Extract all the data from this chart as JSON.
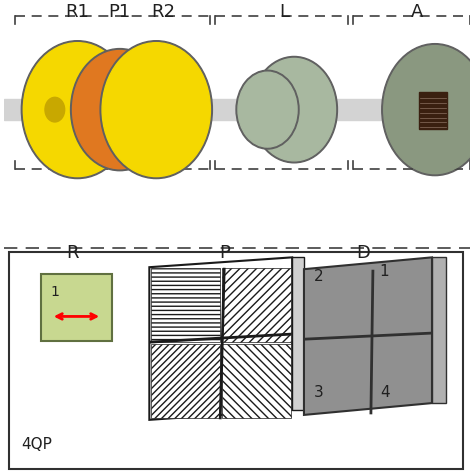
{
  "bg_color": "#ffffff",
  "top_section_bg": "#f0f0f0",
  "beam_color": "#d3d3d3",
  "disk_colors": {
    "yellow": "#f5d800",
    "yellow_dark": "#c8a800",
    "orange": "#e07820",
    "gray_rim": "#606060",
    "green_gray": "#a8b8a0",
    "green_gray_dark": "#8a9880",
    "dark_brown": "#3a2010"
  },
  "dashed_line_color": "#404040",
  "labels_top": [
    "R1",
    "P1",
    "R2",
    "L",
    "A"
  ],
  "labels_bottom": [
    "R",
    "P",
    "D"
  ],
  "label_4QP": "4QP",
  "retarder_color": "#c8d890",
  "retarder_border": "#606060",
  "detector_color_light": "#909090",
  "detector_color_dark": "#686868",
  "font_color": "#202020"
}
